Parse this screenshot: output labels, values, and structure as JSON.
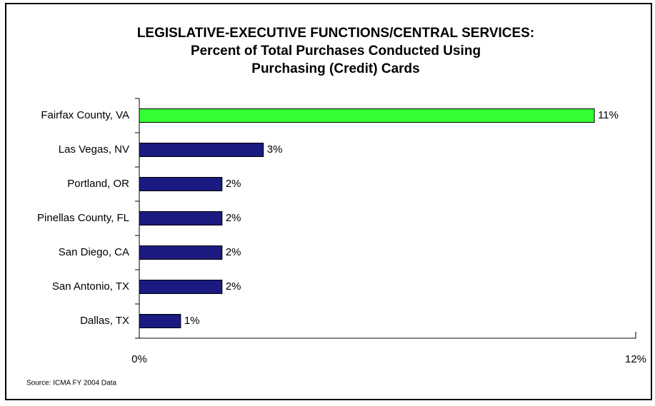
{
  "chart_data": {
    "type": "bar",
    "orientation": "horizontal",
    "title": [
      "LEGISLATIVE-EXECUTIVE FUNCTIONS/CENTRAL SERVICES:",
      "Percent of Total Purchases Conducted Using",
      "Purchasing (Credit) Cards"
    ],
    "categories": [
      "Fairfax County, VA",
      "Las Vegas, NV",
      "Portland, OR",
      "Pinellas County, FL",
      "San Diego, CA",
      "San Antonio, TX",
      "Dallas, TX"
    ],
    "values": [
      11,
      3,
      2,
      2,
      2,
      2,
      1
    ],
    "value_labels": [
      "11%",
      "3%",
      "2%",
      "2%",
      "2%",
      "2%",
      "1%"
    ],
    "colors": [
      "#33ff33",
      "#1a1a80",
      "#1a1a80",
      "#1a1a80",
      "#1a1a80",
      "#1a1a80",
      "#1a1a80"
    ],
    "xlim": [
      0,
      12
    ],
    "xticks": [
      {
        "value": 0,
        "label": "0%"
      },
      {
        "value": 12,
        "label": "12%"
      }
    ],
    "source": "Source: ICMA  FY 2004 Data"
  }
}
